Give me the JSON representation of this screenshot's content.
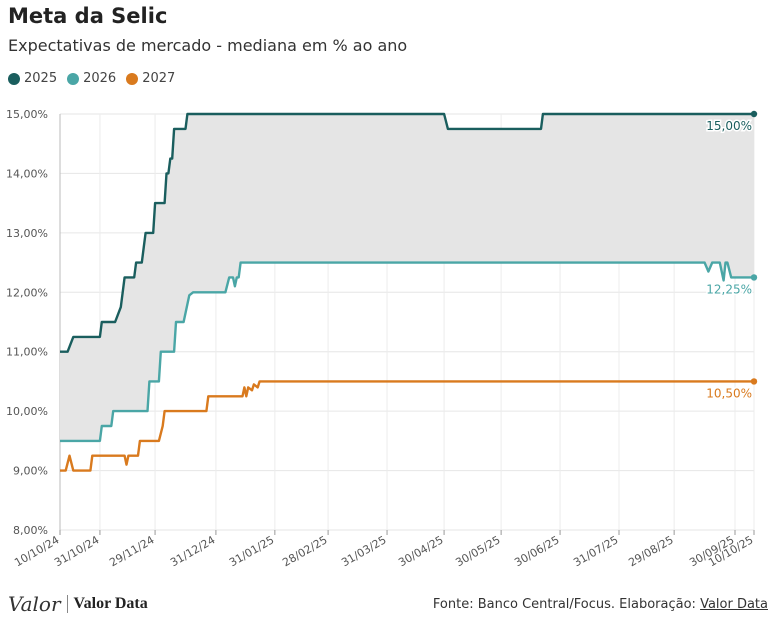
{
  "header": {
    "title": "Meta da Selic",
    "subtitle": "Expectativas de mercado - mediana em % ao ano"
  },
  "legend": [
    {
      "label": "2025",
      "color": "#1a5e5e"
    },
    {
      "label": "2026",
      "color": "#4aa6a6"
    },
    {
      "label": "2027",
      "color": "#d97a1e"
    }
  ],
  "chart_data": {
    "type": "line",
    "title": "Meta da Selic",
    "ylim": [
      8.0,
      15.0
    ],
    "yticks": [
      "8,00%",
      "9,00%",
      "10,00%",
      "11,00%",
      "12,00%",
      "13,00%",
      "14,00%",
      "15,00%"
    ],
    "xlim": [
      "2024-10-10",
      "2025-10-10"
    ],
    "xticks": [
      "10/10/24",
      "31/10/24",
      "29/11/24",
      "31/12/24",
      "31/01/25",
      "28/02/25",
      "31/03/25",
      "30/04/25",
      "30/05/25",
      "30/06/25",
      "31/07/25",
      "29/08/25",
      "30/09/25",
      "10/10/25"
    ],
    "grid": true,
    "band": "shaded area between 2025 and 2026 series",
    "series": [
      {
        "name": "2025",
        "color": "#1a5e5e",
        "end_label": "15,00%",
        "points": [
          [
            "2024-10-10",
            11.0
          ],
          [
            "2024-10-14",
            11.0
          ],
          [
            "2024-10-17",
            11.25
          ],
          [
            "2024-10-31",
            11.25
          ],
          [
            "2024-11-01",
            11.5
          ],
          [
            "2024-11-08",
            11.5
          ],
          [
            "2024-11-11",
            11.75
          ],
          [
            "2024-11-13",
            12.25
          ],
          [
            "2024-11-18",
            12.25
          ],
          [
            "2024-11-19",
            12.5
          ],
          [
            "2024-11-22",
            12.5
          ],
          [
            "2024-11-23",
            12.75
          ],
          [
            "2024-11-24",
            13.0
          ],
          [
            "2024-11-28",
            13.0
          ],
          [
            "2024-11-29",
            13.5
          ],
          [
            "2024-12-04",
            13.5
          ],
          [
            "2024-12-05",
            14.0
          ],
          [
            "2024-12-06",
            14.0
          ],
          [
            "2024-12-07",
            14.25
          ],
          [
            "2024-12-08",
            14.25
          ],
          [
            "2024-12-09",
            14.75
          ],
          [
            "2024-12-15",
            14.75
          ],
          [
            "2024-12-16",
            15.0
          ],
          [
            "2025-04-30",
            15.0
          ],
          [
            "2025-05-02",
            14.75
          ],
          [
            "2025-06-20",
            14.75
          ],
          [
            "2025-06-21",
            15.0
          ],
          [
            "2025-10-10",
            15.0
          ]
        ]
      },
      {
        "name": "2026",
        "color": "#4aa6a6",
        "end_label": "12,25%",
        "points": [
          [
            "2024-10-10",
            9.5
          ],
          [
            "2024-10-31",
            9.5
          ],
          [
            "2024-11-01",
            9.75
          ],
          [
            "2024-11-06",
            9.75
          ],
          [
            "2024-11-07",
            10.0
          ],
          [
            "2024-11-25",
            10.0
          ],
          [
            "2024-11-26",
            10.5
          ],
          [
            "2024-12-01",
            10.5
          ],
          [
            "2024-12-02",
            11.0
          ],
          [
            "2024-12-09",
            11.0
          ],
          [
            "2024-12-10",
            11.5
          ],
          [
            "2024-12-14",
            11.5
          ],
          [
            "2024-12-17",
            11.95
          ],
          [
            "2024-12-19",
            12.0
          ],
          [
            "2025-01-05",
            12.0
          ],
          [
            "2025-01-07",
            12.25
          ],
          [
            "2025-01-09",
            12.25
          ],
          [
            "2025-01-10",
            12.1
          ],
          [
            "2025-01-11",
            12.25
          ],
          [
            "2025-01-12",
            12.25
          ],
          [
            "2025-01-13",
            12.5
          ],
          [
            "2025-09-14",
            12.5
          ],
          [
            "2025-09-16",
            12.35
          ],
          [
            "2025-09-18",
            12.5
          ],
          [
            "2025-09-22",
            12.5
          ],
          [
            "2025-09-24",
            12.2
          ],
          [
            "2025-09-25",
            12.5
          ],
          [
            "2025-09-26",
            12.5
          ],
          [
            "2025-09-28",
            12.25
          ],
          [
            "2025-10-10",
            12.25
          ]
        ]
      },
      {
        "name": "2027",
        "color": "#d97a1e",
        "end_label": "10,50%",
        "points": [
          [
            "2024-10-10",
            9.0
          ],
          [
            "2024-10-13",
            9.0
          ],
          [
            "2024-10-15",
            9.25
          ],
          [
            "2024-10-17",
            9.0
          ],
          [
            "2024-10-26",
            9.0
          ],
          [
            "2024-10-27",
            9.25
          ],
          [
            "2024-11-13",
            9.25
          ],
          [
            "2024-11-14",
            9.1
          ],
          [
            "2024-11-15",
            9.25
          ],
          [
            "2024-11-20",
            9.25
          ],
          [
            "2024-11-21",
            9.5
          ],
          [
            "2024-12-01",
            9.5
          ],
          [
            "2024-12-03",
            9.75
          ],
          [
            "2024-12-04",
            10.0
          ],
          [
            "2024-12-26",
            10.0
          ],
          [
            "2024-12-27",
            10.25
          ],
          [
            "2025-01-14",
            10.25
          ],
          [
            "2025-01-15",
            10.4
          ],
          [
            "2025-01-16",
            10.25
          ],
          [
            "2025-01-17",
            10.4
          ],
          [
            "2025-01-19",
            10.35
          ],
          [
            "2025-01-20",
            10.45
          ],
          [
            "2025-01-22",
            10.4
          ],
          [
            "2025-01-23",
            10.5
          ],
          [
            "2025-10-10",
            10.5
          ]
        ]
      }
    ]
  },
  "footer": {
    "logo_text": "Valor",
    "logo_data": "Valor Data",
    "source_prefix": "Fonte: Banco Central/Focus. Elaboração: ",
    "source_link": "Valor Data"
  }
}
